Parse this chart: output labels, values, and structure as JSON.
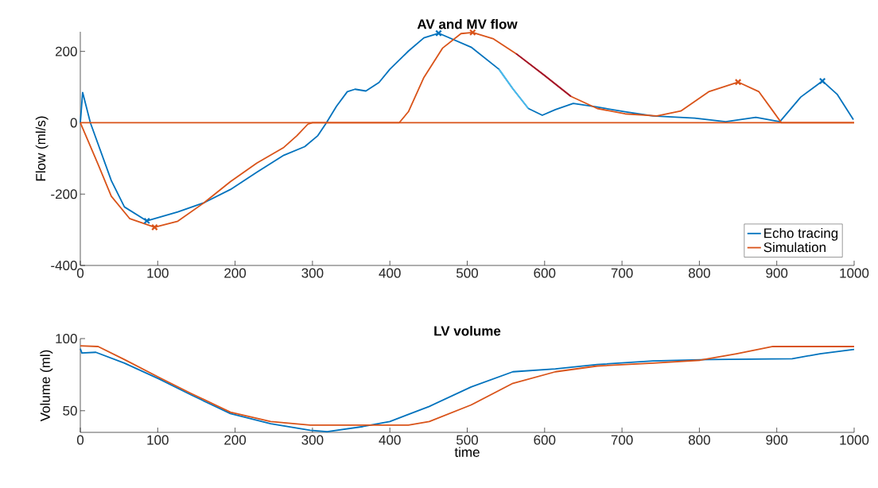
{
  "chart_data": [
    {
      "type": "line",
      "title": "AV and MV flow",
      "ylabel": "Flow (ml/s)",
      "xlim": [
        0,
        1000
      ],
      "ylim": [
        -400,
        255
      ],
      "xticks": [
        0,
        100,
        200,
        300,
        400,
        500,
        600,
        700,
        800,
        900,
        1000
      ],
      "yticks": [
        -400,
        -200,
        0,
        200
      ],
      "legend": "bottom right",
      "grid": false,
      "series": [
        {
          "name": "Echo tracing",
          "color": "#0072bd",
          "x": [
            0,
            3,
            13,
            40,
            57,
            86,
            126,
            160,
            194,
            228,
            263,
            290,
            307,
            318,
            331,
            345,
            355,
            369,
            386,
            400,
            424,
            444,
            463,
            505,
            541,
            559,
            579,
            597,
            614,
            637,
            668,
            704,
            740,
            794,
            834,
            873,
            904,
            931,
            959,
            978,
            999
          ],
          "values": [
            0,
            85,
            0,
            -162,
            -236,
            -275,
            -250,
            -224,
            -187,
            -139,
            -91,
            -67,
            -36,
            0,
            46,
            87,
            94,
            89,
            113,
            150,
            201,
            238,
            251,
            212,
            150,
            95,
            40,
            21,
            37,
            54,
            44,
            31,
            19,
            13,
            3,
            15,
            3,
            72,
            117,
            80,
            9
          ]
        },
        {
          "name": "Simulation",
          "color": "#d95319",
          "x": [
            0,
            23,
            40,
            64,
            96,
            126,
            160,
            194,
            228,
            263,
            280,
            294,
            300,
            412,
            424,
            444,
            468,
            492,
            507,
            534,
            563,
            599,
            634,
            668,
            704,
            745,
            776,
            812,
            850,
            877,
            895,
            906,
            1000
          ],
          "values": [
            0,
            -117,
            -206,
            -269,
            -293,
            -276,
            -224,
            -165,
            -113,
            -69,
            -36,
            -4,
            0,
            0,
            31,
            127,
            209,
            250,
            253,
            235,
            194,
            134,
            74,
            40,
            25,
            19,
            33,
            87,
            114,
            87,
            33,
            0,
            0
          ]
        },
        {
          "type": "line",
          "color": "#d95319",
          "x": [
            0,
            1000
          ],
          "values": [
            0,
            0
          ]
        },
        {
          "type": "line",
          "color": "#4dbeee",
          "x": [
            541,
            559,
            579
          ],
          "values": [
            150,
            95,
            40
          ]
        },
        {
          "type": "line",
          "color": "#a2142f",
          "x": [
            563,
            599,
            634
          ],
          "values": [
            194,
            134,
            74
          ]
        },
        {
          "type": "scatter",
          "marker": "cross",
          "color": "#0072bd",
          "x": [
            86,
            463,
            959
          ],
          "values": [
            -275,
            251,
            117
          ]
        },
        {
          "type": "scatter",
          "marker": "cross",
          "color": "#d95319",
          "x": [
            96,
            507,
            850
          ],
          "values": [
            -293,
            253,
            114
          ]
        }
      ]
    },
    {
      "type": "line",
      "title": "LV volume",
      "xlabel": "time",
      "ylabel": "Volume (ml)",
      "xlim": [
        0,
        1000
      ],
      "ylim": [
        35,
        100
      ],
      "xticks": [
        0,
        100,
        200,
        300,
        400,
        500,
        600,
        700,
        800,
        900,
        1000
      ],
      "yticks": [
        50,
        100
      ],
      "grid": false,
      "series": [
        {
          "color": "#0072bd",
          "x": [
            0,
            2,
            20,
            57,
            102,
            143,
            194,
            246,
            297,
            319,
            365,
            400,
            451,
            505,
            559,
            614,
            668,
            740,
            812,
            920,
            956,
            1000
          ],
          "values": [
            93,
            90,
            90.5,
            83,
            72,
            61,
            48,
            41,
            36.5,
            35.5,
            39,
            42.5,
            53,
            66.5,
            77,
            79,
            82,
            84.5,
            85.5,
            86,
            89.5,
            92.5
          ]
        },
        {
          "color": "#d95319",
          "x": [
            0,
            23,
            57,
            102,
            143,
            194,
            246,
            297,
            424,
            451,
            505,
            559,
            614,
            668,
            740,
            801,
            848,
            895,
            1000
          ],
          "values": [
            95,
            94.5,
            85.5,
            73,
            62,
            49,
            42.5,
            40,
            40,
            42.5,
            54,
            69,
            77,
            81,
            83,
            85,
            89.5,
            94.5,
            94.5
          ]
        }
      ]
    }
  ]
}
